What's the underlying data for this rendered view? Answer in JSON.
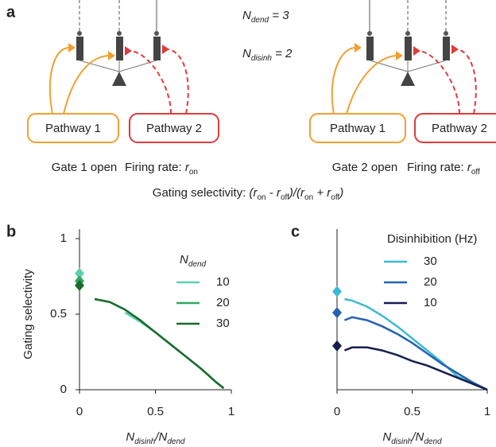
{
  "panel_labels": [
    "a",
    "b",
    "c"
  ],
  "diagram": {
    "params": [
      [
        {
          "text": "N",
          "style": "italic"
        },
        {
          "text": "dend",
          "style": "italic-sub"
        },
        {
          "text": " = 3",
          "style": "italic"
        }
      ],
      [
        {
          "text": "N",
          "style": "italic"
        },
        {
          "text": "disinh",
          "style": "italic-sub"
        },
        {
          "text": " = 2",
          "style": "italic"
        }
      ]
    ],
    "scenarios": [
      {
        "pathways": [
          "Pathway 1",
          "Pathway 2"
        ],
        "gate": "Gate 1 open",
        "rate": [
          {
            "text": "Firing rate: ",
            "style": "normal"
          },
          {
            "text": "r",
            "style": "italic"
          },
          {
            "text": "on",
            "style": "sub"
          }
        ]
      },
      {
        "pathways": [
          "Pathway 1",
          "Pathway 2"
        ],
        "gate": "Gate 2 open",
        "rate": [
          {
            "text": "Firing rate: ",
            "style": "normal"
          },
          {
            "text": "r",
            "style": "italic"
          },
          {
            "text": "off",
            "style": "sub"
          }
        ]
      }
    ],
    "formula": [
      {
        "text": "Gating selectivity: ",
        "style": "normal"
      },
      {
        "text": "(r",
        "style": "italic"
      },
      {
        "text": "on",
        "style": "sub"
      },
      {
        "text": " - r",
        "style": "italic"
      },
      {
        "text": "off",
        "style": "sub"
      },
      {
        "text": ")/(r",
        "style": "italic"
      },
      {
        "text": "on",
        "style": "sub"
      },
      {
        "text": " + r",
        "style": "italic"
      },
      {
        "text": "off",
        "style": "sub"
      },
      {
        "text": ")",
        "style": "italic"
      }
    ]
  },
  "chart_data": [
    {
      "type": "line",
      "ylabel": "Gating selectivity",
      "xlabel": [
        {
          "text": "N",
          "style": "italic"
        },
        {
          "text": "disinh",
          "style": "italic-sub"
        },
        {
          "text": "/N",
          "style": "italic"
        },
        {
          "text": "dend",
          "style": "italic-sub"
        }
      ],
      "legend_title": [
        {
          "text": "N",
          "style": "italic"
        },
        {
          "text": "dend",
          "style": "italic-sub"
        }
      ],
      "xlim": [
        0,
        1
      ],
      "xticks": [
        0,
        0.5,
        1
      ],
      "ylim": [
        0,
        1
      ],
      "yticks": [
        0,
        0.5,
        1
      ],
      "x": [
        0.1,
        0.2,
        0.3,
        0.4,
        0.5,
        0.6,
        0.7,
        0.8,
        0.9,
        0.95
      ],
      "series": [
        {
          "name": "10",
          "color": "#5ccfae",
          "values": [
            null,
            null,
            0.51,
            0.45,
            0.38,
            0.3,
            0.22,
            0.14,
            0.05,
            0.01
          ],
          "marker": {
            "x": 0,
            "value": 0.77
          }
        },
        {
          "name": "20",
          "color": "#2ea862",
          "values": [
            0.6,
            0.58,
            0.53,
            0.46,
            0.38,
            0.3,
            0.22,
            0.14,
            0.05,
            0.01
          ],
          "marker": {
            "x": 0,
            "value": 0.72
          }
        },
        {
          "name": "30",
          "color": "#1a6b2c",
          "values": [
            0.6,
            0.58,
            0.53,
            0.46,
            0.38,
            0.3,
            0.22,
            0.14,
            0.05,
            0.01
          ],
          "marker": {
            "x": 0,
            "value": 0.69
          }
        }
      ]
    },
    {
      "type": "line",
      "xlabel": [
        {
          "text": "N",
          "style": "italic"
        },
        {
          "text": "disinh",
          "style": "italic-sub"
        },
        {
          "text": "/N",
          "style": "italic"
        },
        {
          "text": "dend",
          "style": "italic-sub"
        }
      ],
      "legend_title": [
        {
          "text": "Disinhibition (Hz)",
          "style": "normal"
        }
      ],
      "xlim": [
        0,
        1
      ],
      "xticks": [
        0,
        0.5,
        1
      ],
      "ylim": [
        0,
        1
      ],
      "x": [
        0.05,
        0.1,
        0.2,
        0.3,
        0.4,
        0.5,
        0.6,
        0.7,
        0.8,
        0.9,
        1
      ],
      "series": [
        {
          "name": "30",
          "color": "#3cb9d2",
          "values": [
            0.6,
            0.59,
            0.55,
            0.49,
            0.42,
            0.34,
            0.26,
            0.18,
            0.09,
            0.04,
            0
          ],
          "marker": {
            "x": 0,
            "value": 0.65
          }
        },
        {
          "name": "20",
          "color": "#2462b0",
          "values": [
            0.46,
            0.48,
            0.46,
            0.42,
            0.37,
            0.31,
            0.24,
            0.17,
            0.11,
            0.05,
            0
          ],
          "marker": {
            "x": 0,
            "value": 0.51
          }
        },
        {
          "name": "10",
          "color": "#141f50",
          "values": [
            0.26,
            0.28,
            0.28,
            0.26,
            0.23,
            0.19,
            0.16,
            0.12,
            0.08,
            0.04,
            0
          ],
          "marker": {
            "x": 0,
            "value": 0.29
          }
        }
      ]
    }
  ]
}
